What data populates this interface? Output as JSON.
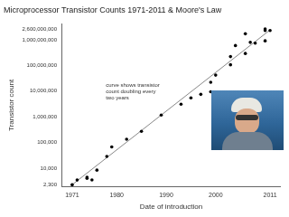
{
  "chart_data": {
    "type": "scatter",
    "title": "Microprocessor Transistor Counts 1971-2011 & Moore's Law",
    "x_label": "Date of introduction",
    "y_label": "Transistor count",
    "annotations": [
      "curve shows transistor count doubling every two years"
    ],
    "log": "y",
    "grid": false,
    "xlim": [
      1969,
      2013
    ],
    "xticks": [
      1971,
      1980,
      1990,
      2000,
      2011
    ],
    "ylim": [
      2000,
      4000000000
    ],
    "yticks": [
      {
        "value": 2300,
        "label": "2,300"
      },
      {
        "value": 10000,
        "label": "10,000"
      },
      {
        "value": 100000,
        "label": "100,000"
      },
      {
        "value": 1000000,
        "label": "1,000,000"
      },
      {
        "value": 10000000,
        "label": "10,000,000"
      },
      {
        "value": 100000000,
        "label": "100,000,000"
      },
      {
        "value": 1000000000,
        "label": "1,000,000,000"
      },
      {
        "value": 2600000000,
        "label": "2,600,000,000"
      }
    ],
    "series": [
      {
        "type": "scatter",
        "marker": "circle",
        "color": "#000000",
        "x": [
          1971,
          1972,
          1974,
          1974,
          1975,
          1976,
          1978,
          1979,
          1982,
          1985,
          1989,
          1993,
          1995,
          1997,
          1999,
          1999,
          2000,
          2003,
          2003,
          2004,
          2006,
          2006,
          2007,
          2008,
          2010,
          2010,
          2011,
          2010
        ],
        "values": [
          2300,
          3500,
          4500,
          4100,
          3510,
          8500,
          29000,
          68000,
          134000,
          275000,
          1180000,
          3100000,
          5500000,
          7500000,
          9500000,
          22000000,
          42000000,
          220000000,
          105900000,
          592000000,
          291000000,
          1700000000,
          789000000,
          731000000,
          2300000000,
          904000000,
          2270000000,
          2600000000
        ]
      },
      {
        "type": "line",
        "line_style": "solid",
        "color": "#888888",
        "x": [
          1971,
          2011
        ],
        "values": [
          2300,
          2400000000
        ]
      }
    ]
  }
}
